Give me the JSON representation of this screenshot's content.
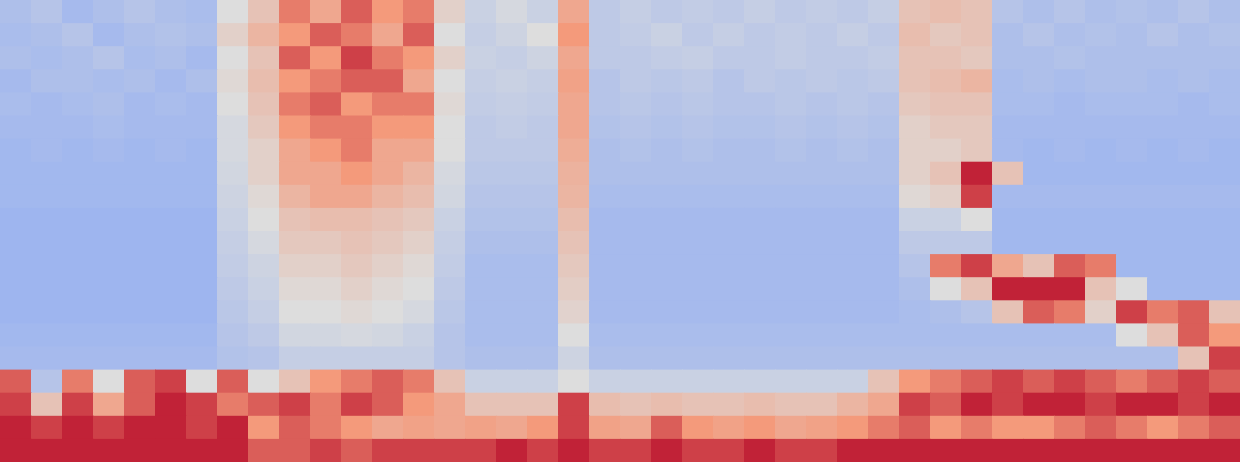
{
  "chart_data": {
    "type": "heatmap",
    "tick_labels": false,
    "xlim": [
      0,
      40
    ],
    "ylim": [
      0,
      20
    ],
    "color_range": [
      0,
      1
    ],
    "z": [
      [
        0.38,
        0.4,
        0.36,
        0.38,
        0.4,
        0.38,
        0.37,
        0.5,
        0.6,
        0.8,
        0.7,
        0.85,
        0.75,
        0.8,
        0.55,
        0.45,
        0.48,
        0.45,
        0.7,
        0.42,
        0.44,
        0.42,
        0.43,
        0.42,
        0.44,
        0.42,
        0.43,
        0.42,
        0.44,
        0.6,
        0.62,
        0.6,
        0.4,
        0.38,
        0.4,
        0.38,
        0.39,
        0.38,
        0.4,
        0.38
      ],
      [
        0.37,
        0.38,
        0.4,
        0.36,
        0.38,
        0.39,
        0.38,
        0.55,
        0.65,
        0.75,
        0.85,
        0.8,
        0.7,
        0.85,
        0.5,
        0.44,
        0.46,
        0.5,
        0.75,
        0.42,
        0.43,
        0.45,
        0.42,
        0.44,
        0.42,
        0.43,
        0.42,
        0.44,
        0.42,
        0.62,
        0.58,
        0.6,
        0.38,
        0.4,
        0.38,
        0.39,
        0.38,
        0.4,
        0.38,
        0.39
      ],
      [
        0.38,
        0.37,
        0.38,
        0.4,
        0.37,
        0.38,
        0.36,
        0.5,
        0.6,
        0.85,
        0.75,
        0.9,
        0.8,
        0.75,
        0.55,
        0.45,
        0.44,
        0.46,
        0.7,
        0.42,
        0.42,
        0.43,
        0.44,
        0.42,
        0.42,
        0.43,
        0.42,
        0.42,
        0.43,
        0.6,
        0.6,
        0.58,
        0.38,
        0.38,
        0.39,
        0.38,
        0.38,
        0.38,
        0.38,
        0.38
      ],
      [
        0.36,
        0.38,
        0.38,
        0.37,
        0.38,
        0.36,
        0.38,
        0.52,
        0.62,
        0.75,
        0.8,
        0.85,
        0.85,
        0.7,
        0.5,
        0.44,
        0.45,
        0.44,
        0.72,
        0.4,
        0.42,
        0.41,
        0.42,
        0.4,
        0.42,
        0.41,
        0.42,
        0.41,
        0.42,
        0.6,
        0.62,
        0.65,
        0.37,
        0.38,
        0.37,
        0.38,
        0.38,
        0.37,
        0.38,
        0.37
      ],
      [
        0.37,
        0.36,
        0.37,
        0.38,
        0.36,
        0.37,
        0.36,
        0.5,
        0.6,
        0.8,
        0.85,
        0.75,
        0.8,
        0.8,
        0.52,
        0.43,
        0.44,
        0.43,
        0.7,
        0.4,
        0.41,
        0.4,
        0.41,
        0.4,
        0.4,
        0.41,
        0.4,
        0.41,
        0.4,
        0.58,
        0.6,
        0.6,
        0.37,
        0.37,
        0.36,
        0.37,
        0.37,
        0.37,
        0.36,
        0.37
      ],
      [
        0.36,
        0.36,
        0.36,
        0.37,
        0.36,
        0.36,
        0.36,
        0.48,
        0.58,
        0.75,
        0.8,
        0.8,
        0.75,
        0.75,
        0.5,
        0.42,
        0.43,
        0.42,
        0.7,
        0.39,
        0.4,
        0.39,
        0.4,
        0.39,
        0.39,
        0.4,
        0.39,
        0.4,
        0.39,
        0.55,
        0.58,
        0.58,
        0.36,
        0.36,
        0.36,
        0.36,
        0.36,
        0.36,
        0.36,
        0.36
      ],
      [
        0.35,
        0.36,
        0.35,
        0.36,
        0.35,
        0.36,
        0.35,
        0.48,
        0.55,
        0.7,
        0.75,
        0.8,
        0.7,
        0.7,
        0.5,
        0.42,
        0.42,
        0.42,
        0.68,
        0.38,
        0.39,
        0.38,
        0.39,
        0.38,
        0.38,
        0.39,
        0.38,
        0.39,
        0.38,
        0.55,
        0.55,
        0.58,
        0.36,
        0.35,
        0.36,
        0.35,
        0.36,
        0.35,
        0.36,
        0.35
      ],
      [
        0.35,
        0.35,
        0.35,
        0.35,
        0.35,
        0.35,
        0.35,
        0.47,
        0.55,
        0.7,
        0.7,
        0.75,
        0.7,
        0.65,
        0.48,
        0.41,
        0.41,
        0.41,
        0.66,
        0.38,
        0.38,
        0.38,
        0.38,
        0.38,
        0.38,
        0.38,
        0.38,
        0.38,
        0.38,
        0.55,
        0.6,
        0.95,
        0.6,
        0.35,
        0.35,
        0.35,
        0.35,
        0.35,
        0.35,
        0.35
      ],
      [
        0.35,
        0.35,
        0.35,
        0.35,
        0.35,
        0.35,
        0.35,
        0.46,
        0.52,
        0.65,
        0.7,
        0.7,
        0.65,
        0.62,
        0.47,
        0.4,
        0.4,
        0.4,
        0.65,
        0.37,
        0.37,
        0.37,
        0.37,
        0.37,
        0.37,
        0.37,
        0.37,
        0.37,
        0.37,
        0.52,
        0.55,
        0.9,
        0.36,
        0.36,
        0.36,
        0.36,
        0.36,
        0.36,
        0.36,
        0.36
      ],
      [
        0.34,
        0.34,
        0.34,
        0.34,
        0.34,
        0.34,
        0.34,
        0.45,
        0.5,
        0.6,
        0.62,
        0.62,
        0.6,
        0.58,
        0.45,
        0.39,
        0.39,
        0.39,
        0.62,
        0.36,
        0.36,
        0.36,
        0.36,
        0.36,
        0.36,
        0.36,
        0.36,
        0.36,
        0.36,
        0.45,
        0.45,
        0.5,
        0.35,
        0.35,
        0.35,
        0.35,
        0.35,
        0.35,
        0.35,
        0.35
      ],
      [
        0.34,
        0.34,
        0.34,
        0.34,
        0.34,
        0.34,
        0.34,
        0.44,
        0.48,
        0.58,
        0.58,
        0.6,
        0.58,
        0.55,
        0.44,
        0.38,
        0.38,
        0.38,
        0.6,
        0.36,
        0.36,
        0.36,
        0.36,
        0.36,
        0.36,
        0.36,
        0.36,
        0.36,
        0.36,
        0.42,
        0.42,
        0.42,
        0.35,
        0.35,
        0.35,
        0.35,
        0.35,
        0.35,
        0.35,
        0.35
      ],
      [
        0.34,
        0.34,
        0.34,
        0.34,
        0.34,
        0.34,
        0.34,
        0.43,
        0.46,
        0.55,
        0.55,
        0.58,
        0.55,
        0.52,
        0.43,
        0.37,
        0.37,
        0.37,
        0.58,
        0.36,
        0.36,
        0.36,
        0.36,
        0.36,
        0.36,
        0.36,
        0.36,
        0.36,
        0.36,
        0.4,
        0.8,
        0.9,
        0.7,
        0.6,
        0.85,
        0.8,
        0.35,
        0.35,
        0.35,
        0.35
      ],
      [
        0.34,
        0.34,
        0.34,
        0.34,
        0.34,
        0.34,
        0.34,
        0.42,
        0.45,
        0.52,
        0.52,
        0.55,
        0.52,
        0.5,
        0.42,
        0.37,
        0.37,
        0.37,
        0.56,
        0.36,
        0.36,
        0.36,
        0.36,
        0.36,
        0.36,
        0.36,
        0.36,
        0.36,
        0.36,
        0.38,
        0.5,
        0.6,
        0.95,
        0.95,
        0.95,
        0.6,
        0.5,
        0.35,
        0.35,
        0.35
      ],
      [
        0.34,
        0.34,
        0.34,
        0.34,
        0.34,
        0.34,
        0.34,
        0.41,
        0.44,
        0.5,
        0.5,
        0.52,
        0.5,
        0.48,
        0.41,
        0.37,
        0.37,
        0.37,
        0.54,
        0.36,
        0.36,
        0.36,
        0.36,
        0.36,
        0.36,
        0.36,
        0.36,
        0.36,
        0.36,
        0.37,
        0.38,
        0.4,
        0.6,
        0.85,
        0.8,
        0.55,
        0.9,
        0.8,
        0.85,
        0.6
      ],
      [
        0.35,
        0.35,
        0.35,
        0.35,
        0.35,
        0.35,
        0.35,
        0.4,
        0.42,
        0.47,
        0.47,
        0.48,
        0.47,
        0.45,
        0.4,
        0.37,
        0.37,
        0.37,
        0.5,
        0.37,
        0.37,
        0.37,
        0.37,
        0.37,
        0.37,
        0.37,
        0.37,
        0.37,
        0.37,
        0.37,
        0.37,
        0.37,
        0.37,
        0.37,
        0.37,
        0.37,
        0.5,
        0.6,
        0.85,
        0.75
      ],
      [
        0.36,
        0.36,
        0.36,
        0.36,
        0.36,
        0.36,
        0.36,
        0.39,
        0.4,
        0.44,
        0.44,
        0.44,
        0.44,
        0.44,
        0.4,
        0.38,
        0.38,
        0.38,
        0.46,
        0.38,
        0.38,
        0.38,
        0.38,
        0.38,
        0.38,
        0.38,
        0.38,
        0.38,
        0.38,
        0.38,
        0.38,
        0.38,
        0.38,
        0.38,
        0.38,
        0.38,
        0.38,
        0.38,
        0.6,
        0.9
      ],
      [
        0.85,
        0.4,
        0.8,
        0.5,
        0.85,
        0.9,
        0.5,
        0.85,
        0.5,
        0.6,
        0.75,
        0.8,
        0.85,
        0.8,
        0.6,
        0.45,
        0.45,
        0.45,
        0.5,
        0.45,
        0.45,
        0.45,
        0.45,
        0.45,
        0.45,
        0.45,
        0.45,
        0.45,
        0.6,
        0.75,
        0.8,
        0.85,
        0.9,
        0.85,
        0.9,
        0.85,
        0.8,
        0.85,
        0.9,
        0.85
      ],
      [
        0.9,
        0.6,
        0.9,
        0.7,
        0.85,
        0.95,
        0.9,
        0.8,
        0.85,
        0.9,
        0.8,
        0.9,
        0.85,
        0.75,
        0.7,
        0.6,
        0.6,
        0.6,
        0.9,
        0.62,
        0.6,
        0.62,
        0.6,
        0.6,
        0.62,
        0.6,
        0.6,
        0.65,
        0.7,
        0.9,
        0.85,
        0.95,
        0.9,
        0.95,
        0.95,
        0.9,
        0.95,
        0.95,
        0.9,
        0.95
      ],
      [
        0.95,
        0.9,
        0.95,
        0.9,
        0.95,
        0.95,
        0.9,
        0.95,
        0.75,
        0.85,
        0.8,
        0.75,
        0.7,
        0.72,
        0.7,
        0.72,
        0.7,
        0.75,
        0.9,
        0.72,
        0.7,
        0.85,
        0.75,
        0.72,
        0.75,
        0.7,
        0.72,
        0.75,
        0.8,
        0.85,
        0.75,
        0.8,
        0.75,
        0.75,
        0.8,
        0.85,
        0.8,
        0.75,
        0.8,
        0.85
      ],
      [
        0.95,
        0.95,
        0.95,
        0.95,
        0.95,
        0.95,
        0.95,
        0.95,
        0.85,
        0.85,
        0.9,
        0.85,
        0.9,
        0.9,
        0.9,
        0.9,
        0.95,
        0.9,
        0.95,
        0.9,
        0.9,
        0.95,
        0.9,
        0.9,
        0.95,
        0.9,
        0.9,
        0.95,
        0.95,
        0.95,
        0.95,
        0.95,
        0.95,
        0.95,
        0.95,
        0.95,
        0.95,
        0.95,
        0.95,
        0.95
      ]
    ]
  }
}
